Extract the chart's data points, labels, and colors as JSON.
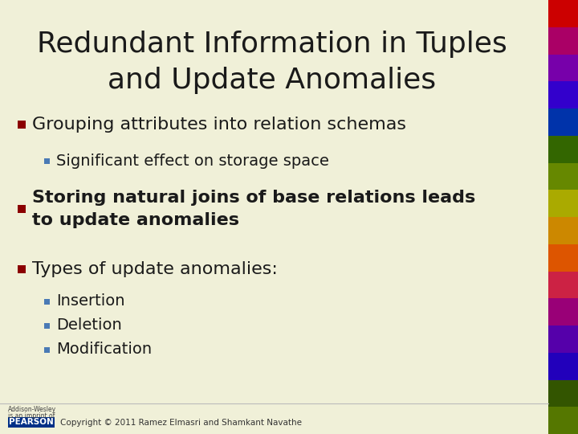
{
  "title_line1": "Redundant Information in Tuples",
  "title_line2": "and Update Anomalies",
  "bg_color": "#f0f0d8",
  "title_color": "#1a1a1a",
  "bullet_color": "#8b0000",
  "sub_bullet_color": "#4a7ab5",
  "text_color": "#1a1a1a",
  "sub_text_color": "#1a1a1a",
  "copyright": "Copyright © 2011 Ramez Elmasri and Shamkant Navathe",
  "publisher_line1": "Addison-Wesley",
  "publisher_line2": "is an imprint of",
  "pearson_bg": "#003087",
  "pearson_text": "PEARSON",
  "stripe_colors": [
    "#cc0000",
    "#aa0066",
    "#7700aa",
    "#3300cc",
    "#0033aa",
    "#336600",
    "#668800",
    "#aaaa00",
    "#cc8800",
    "#dd5500",
    "#cc2244",
    "#990077",
    "#5500aa",
    "#2200bb",
    "#335500",
    "#557700"
  ],
  "items": [
    {
      "level": 1,
      "text": "Grouping attributes into relation schemas",
      "bold": false
    },
    {
      "level": 2,
      "text": "Significant effect on storage space",
      "bold": false
    },
    {
      "level": 1,
      "text": "Storing natural joins of base relations leads\nto update anomalies",
      "bold": true
    },
    {
      "level": 1,
      "text": "Types of update anomalies:",
      "bold": false
    },
    {
      "level": 2,
      "text": "Insertion",
      "bold": false
    },
    {
      "level": 2,
      "text": "Deletion",
      "bold": false
    },
    {
      "level": 2,
      "text": "Modification",
      "bold": false
    }
  ]
}
